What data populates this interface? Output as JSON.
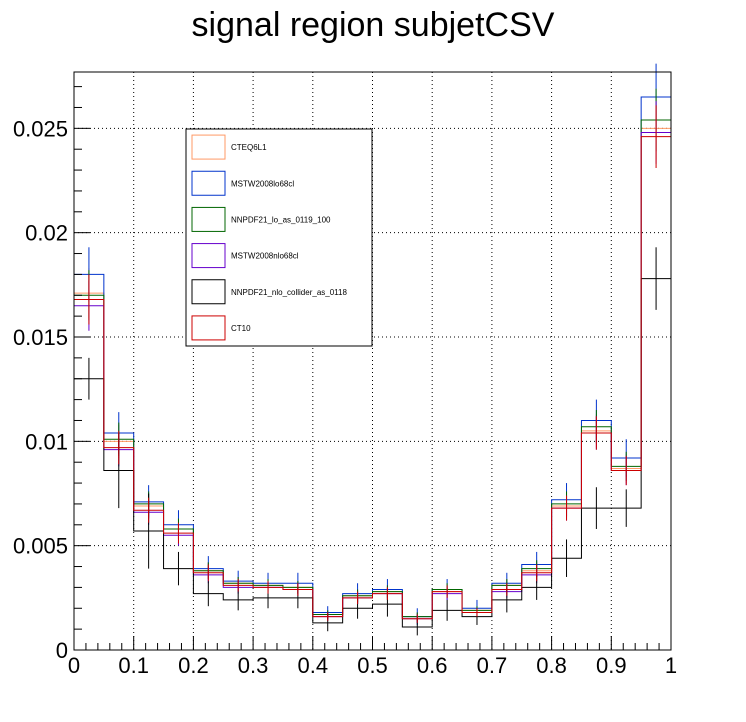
{
  "chart_data": {
    "type": "histogram",
    "title": "signal region subjetCSV",
    "xlabel": "",
    "ylabel": "",
    "xlim": [
      0,
      1
    ],
    "ylim": [
      0,
      0.0277
    ],
    "grid": true,
    "legend_placement": "upper-left",
    "bin_edges": [
      0,
      0.05,
      0.1,
      0.15,
      0.2,
      0.25,
      0.3,
      0.35,
      0.4,
      0.45,
      0.5,
      0.55,
      0.6,
      0.65,
      0.7,
      0.75,
      0.8,
      0.85,
      0.9,
      0.95,
      1.0
    ],
    "x_ticks": [
      {
        "value": 0,
        "label": "0"
      },
      {
        "value": 0.1,
        "label": "0.1"
      },
      {
        "value": 0.2,
        "label": "0.2"
      },
      {
        "value": 0.3,
        "label": "0.3"
      },
      {
        "value": 0.4,
        "label": "0.4"
      },
      {
        "value": 0.5,
        "label": "0.5"
      },
      {
        "value": 0.6,
        "label": "0.6"
      },
      {
        "value": 0.7,
        "label": "0.7"
      },
      {
        "value": 0.8,
        "label": "0.8"
      },
      {
        "value": 0.9,
        "label": "0.9"
      },
      {
        "value": 1.0,
        "label": "1"
      }
    ],
    "y_ticks": [
      {
        "value": 0,
        "label": "0"
      },
      {
        "value": 0.005,
        "label": "0.005"
      },
      {
        "value": 0.01,
        "label": "0.01"
      },
      {
        "value": 0.015,
        "label": "0.015"
      },
      {
        "value": 0.02,
        "label": "0.02"
      },
      {
        "value": 0.025,
        "label": "0.025"
      }
    ],
    "series": [
      {
        "name": "CTEQ6L1",
        "color": "#ff9966",
        "values": [
          0.0171,
          0.01,
          0.0069,
          0.0058,
          0.0038,
          0.0032,
          0.0031,
          0.003,
          0.0017,
          0.0026,
          0.0028,
          0.0016,
          0.0028,
          0.0019,
          0.0031,
          0.0038,
          0.0069,
          0.0105,
          0.0087,
          0.025
        ],
        "errors": [
          0.0012,
          0.0008,
          0.0006,
          0.0005,
          0.0004,
          0.0003,
          0.0003,
          0.0003,
          0.0002,
          0.0003,
          0.0003,
          0.0002,
          0.0003,
          0.0002,
          0.0003,
          0.0004,
          0.0006,
          0.0008,
          0.0007,
          0.0015
        ]
      },
      {
        "name": "MSTW2008lo68cl",
        "color": "#0033cc",
        "values": [
          0.018,
          0.0104,
          0.0071,
          0.006,
          0.0039,
          0.0033,
          0.0032,
          0.0032,
          0.0018,
          0.0027,
          0.0029,
          0.0016,
          0.0029,
          0.002,
          0.0032,
          0.0041,
          0.0072,
          0.011,
          0.0092,
          0.0265
        ],
        "errors": [
          0.0013,
          0.001,
          0.0008,
          0.0007,
          0.0006,
          0.0005,
          0.0005,
          0.0005,
          0.0003,
          0.0005,
          0.0005,
          0.0004,
          0.0005,
          0.0004,
          0.0005,
          0.0006,
          0.0008,
          0.001,
          0.0009,
          0.0016
        ]
      },
      {
        "name": "NNPDF21_lo_as_0119_100",
        "color": "#006600",
        "values": [
          0.017,
          0.0101,
          0.007,
          0.0058,
          0.0038,
          0.0032,
          0.0031,
          0.003,
          0.0017,
          0.0026,
          0.0028,
          0.0016,
          0.0029,
          0.0019,
          0.0031,
          0.0039,
          0.007,
          0.0107,
          0.0088,
          0.0254
        ],
        "errors": [
          0.0012,
          0.0008,
          0.0006,
          0.0005,
          0.0004,
          0.0003,
          0.0003,
          0.0003,
          0.0002,
          0.0003,
          0.0003,
          0.0002,
          0.0003,
          0.0002,
          0.0003,
          0.0004,
          0.0006,
          0.0008,
          0.0007,
          0.0015
        ]
      },
      {
        "name": "MSTW2008nlo68cl",
        "color": "#6600cc",
        "values": [
          0.0165,
          0.0096,
          0.0066,
          0.0055,
          0.0036,
          0.003,
          0.003,
          0.0029,
          0.0016,
          0.0025,
          0.0027,
          0.0015,
          0.0027,
          0.0018,
          0.0028,
          0.0036,
          0.0068,
          0.0104,
          0.0086,
          0.0248
        ],
        "errors": [
          0.0012,
          0.0008,
          0.0006,
          0.0005,
          0.0004,
          0.0003,
          0.0003,
          0.0003,
          0.0002,
          0.0003,
          0.0003,
          0.0002,
          0.0003,
          0.0002,
          0.0003,
          0.0004,
          0.0006,
          0.0008,
          0.0007,
          0.0015
        ]
      },
      {
        "name": "NNPDF21_nlo_collider_as_0118",
        "color": "#000000",
        "values": [
          0.013,
          0.0086,
          0.0057,
          0.0039,
          0.0027,
          0.0024,
          0.0025,
          0.0025,
          0.0013,
          0.002,
          0.0022,
          0.0011,
          0.0019,
          0.0016,
          0.0024,
          0.003,
          0.0044,
          0.0068,
          0.0068,
          0.0178
        ],
        "errors": [
          0.001,
          0.0018,
          0.0018,
          0.0008,
          0.0006,
          0.0005,
          0.0005,
          0.0005,
          0.0004,
          0.0005,
          0.0006,
          0.0004,
          0.0005,
          0.0004,
          0.0006,
          0.0006,
          0.0009,
          0.001,
          0.0009,
          0.0015
        ]
      },
      {
        "name": "CT10",
        "color": "#cc0000",
        "values": [
          0.0168,
          0.0097,
          0.0067,
          0.0056,
          0.0037,
          0.0031,
          0.003,
          0.0029,
          0.0016,
          0.0025,
          0.0027,
          0.0015,
          0.0028,
          0.0018,
          0.0029,
          0.0037,
          0.0068,
          0.0104,
          0.0086,
          0.0246
        ],
        "errors": [
          0.0012,
          0.0008,
          0.0006,
          0.0005,
          0.0004,
          0.0003,
          0.0003,
          0.0003,
          0.0002,
          0.0003,
          0.0003,
          0.0002,
          0.0003,
          0.0002,
          0.0003,
          0.0004,
          0.0006,
          0.0008,
          0.0007,
          0.0015
        ]
      }
    ]
  }
}
